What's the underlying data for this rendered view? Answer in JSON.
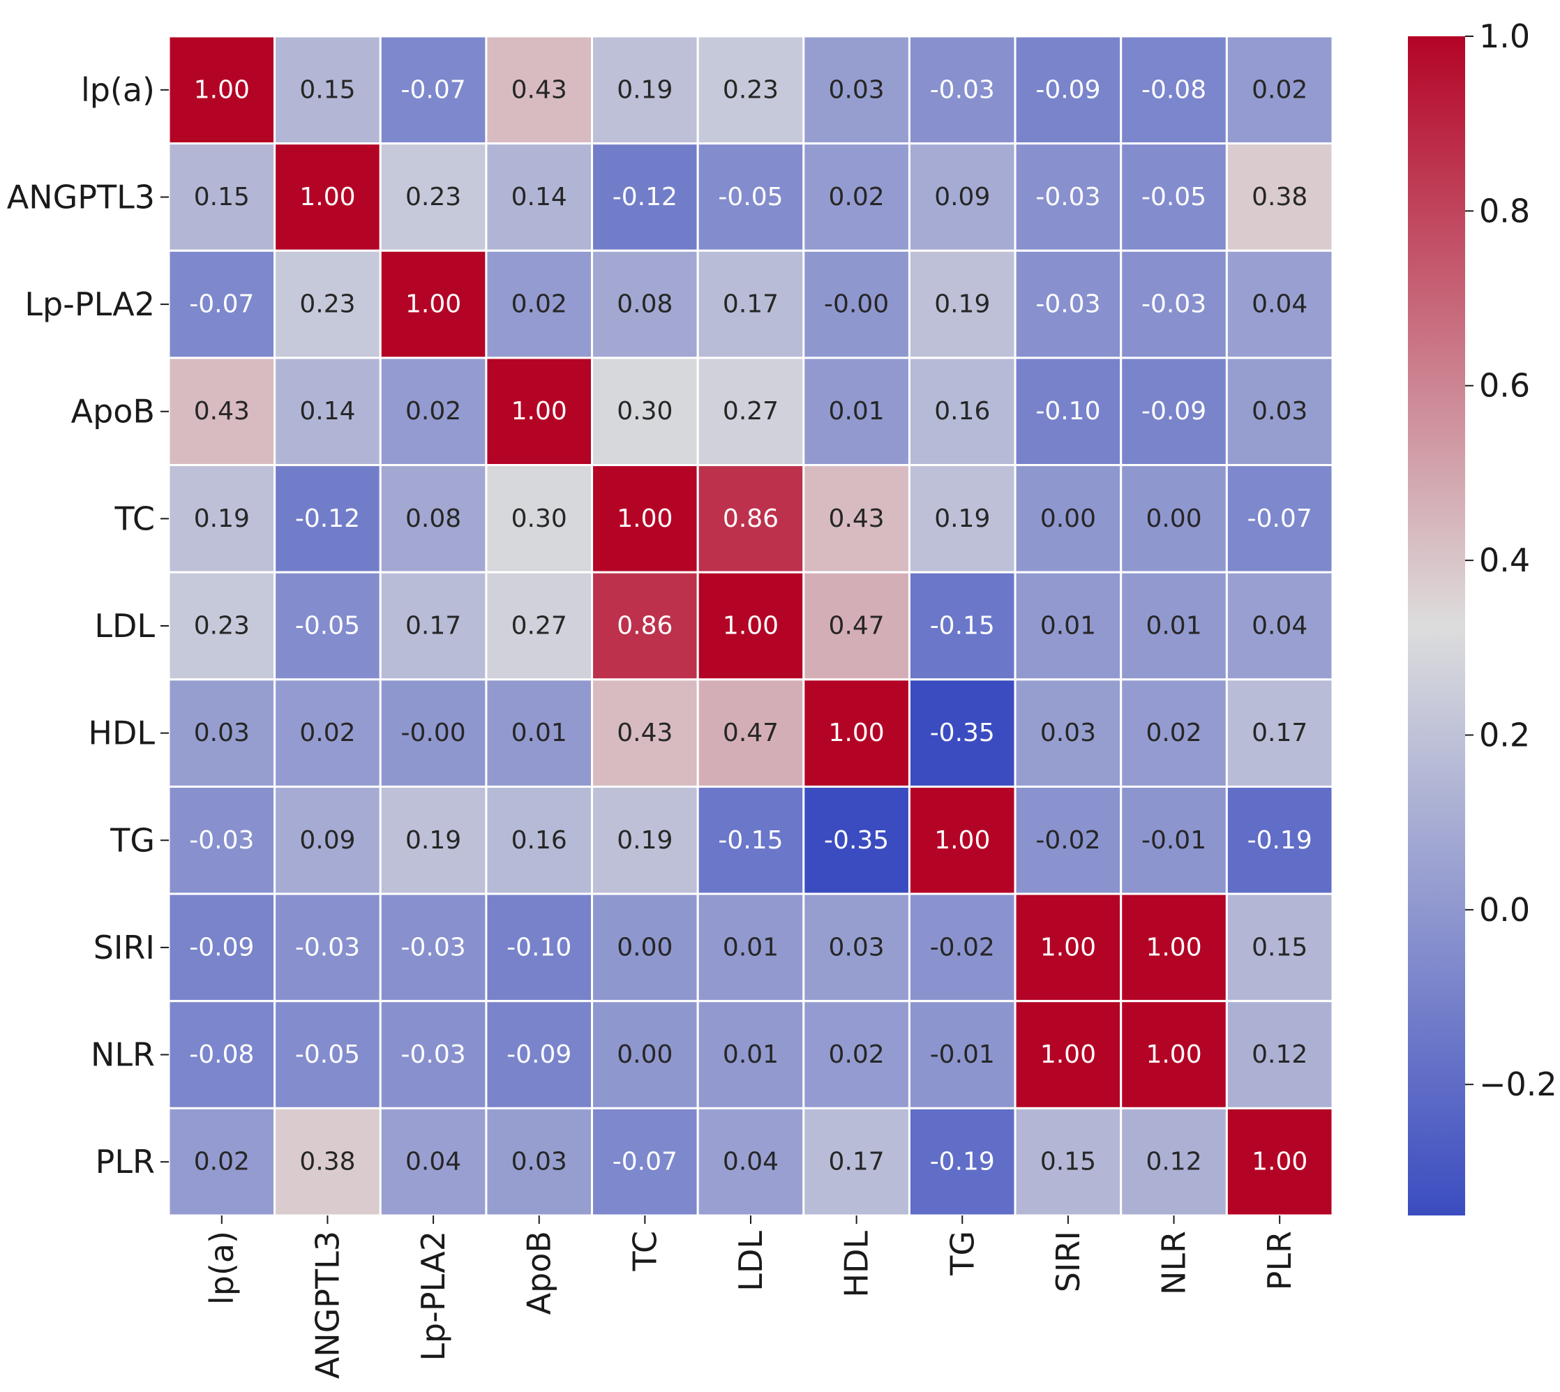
{
  "chart_data": {
    "type": "heatmap",
    "title": "",
    "xlabel": "",
    "ylabel": "",
    "row_labels": [
      "lp(a)",
      "ANGPTL3",
      "Lp-PLA2",
      "ApoB",
      "TC",
      "LDL",
      "HDL",
      "TG",
      "SIRI",
      "NLR",
      "PLR"
    ],
    "col_labels": [
      "lp(a)",
      "ANGPTL3",
      "Lp-PLA2",
      "ApoB",
      "TC",
      "LDL",
      "HDL",
      "TG",
      "SIRI",
      "NLR",
      "PLR"
    ],
    "values": [
      [
        1.0,
        0.15,
        -0.07,
        0.43,
        0.19,
        0.23,
        0.03,
        -0.03,
        -0.09,
        -0.08,
        0.02
      ],
      [
        0.15,
        1.0,
        0.23,
        0.14,
        -0.12,
        -0.05,
        0.02,
        0.09,
        -0.03,
        -0.05,
        0.38
      ],
      [
        -0.07,
        0.23,
        1.0,
        0.02,
        0.08,
        0.17,
        -0.0,
        0.19,
        -0.03,
        -0.03,
        0.04
      ],
      [
        0.43,
        0.14,
        0.02,
        1.0,
        0.3,
        0.27,
        0.01,
        0.16,
        -0.1,
        -0.09,
        0.03
      ],
      [
        0.19,
        -0.12,
        0.08,
        0.3,
        1.0,
        0.86,
        0.43,
        0.19,
        0.0,
        0.0,
        -0.07
      ],
      [
        0.23,
        -0.05,
        0.17,
        0.27,
        0.86,
        1.0,
        0.47,
        -0.15,
        0.01,
        0.01,
        0.04
      ],
      [
        0.03,
        0.02,
        -0.0,
        0.01,
        0.43,
        0.47,
        1.0,
        -0.35,
        0.03,
        0.02,
        0.17
      ],
      [
        -0.03,
        0.09,
        0.19,
        0.16,
        0.19,
        -0.15,
        -0.35,
        1.0,
        -0.02,
        -0.01,
        -0.19
      ],
      [
        -0.09,
        -0.03,
        -0.03,
        -0.1,
        0.0,
        0.01,
        0.03,
        -0.02,
        1.0,
        1.0,
        0.15
      ],
      [
        -0.08,
        -0.05,
        -0.03,
        -0.09,
        0.0,
        0.01,
        0.02,
        -0.01,
        1.0,
        1.0,
        0.12
      ],
      [
        0.02,
        0.38,
        0.04,
        0.03,
        -0.07,
        0.04,
        0.17,
        -0.19,
        0.15,
        0.12,
        1.0
      ]
    ],
    "annotation_format": "2 decimals",
    "colormap": "coolwarm",
    "colormap_stops": [
      "#3b4cc0",
      "#dddddd",
      "#b40426"
    ],
    "vmin": -0.35,
    "vmax": 1.0,
    "colorbar": {
      "ticks": [
        -0.2,
        0.0,
        0.2,
        0.4,
        0.6,
        0.8,
        1.0
      ],
      "tick_labels": [
        "−0.2",
        "0.0",
        "0.2",
        "0.4",
        "0.6",
        "0.8",
        "1.0"
      ]
    },
    "grid": true,
    "legend": "colorbar-right"
  }
}
